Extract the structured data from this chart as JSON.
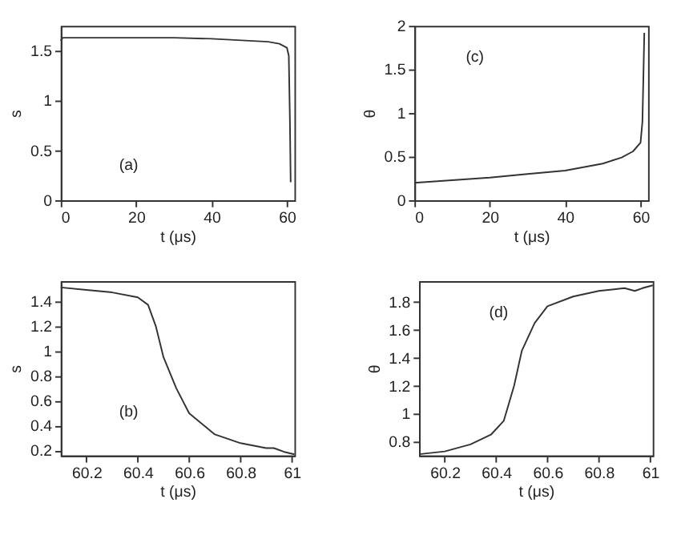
{
  "chart_data": [
    {
      "type": "line",
      "xlabel": "t (μs)",
      "ylabel": "s",
      "annotations": [
        "(a)"
      ],
      "xlim": [
        0,
        62
      ],
      "ylim": [
        0,
        1.75
      ],
      "xticks": [
        0,
        20,
        40,
        60
      ],
      "yticks": [
        0,
        0.5,
        1,
        1.5
      ],
      "grid": false,
      "x": [
        0,
        0.5,
        2,
        10,
        20,
        30,
        40,
        50,
        55,
        58,
        60,
        60.5,
        60.8,
        61
      ],
      "series": [
        {
          "color": "#333333",
          "values": [
            1.6,
            1.63,
            1.63,
            1.63,
            1.63,
            1.63,
            1.62,
            1.6,
            1.59,
            1.57,
            1.53,
            1.45,
            0.8,
            0.18
          ]
        }
      ]
    },
    {
      "type": "line",
      "xlabel": "t (μs)",
      "ylabel": "θ",
      "annotations": [
        "(c)"
      ],
      "xlim": [
        0,
        62
      ],
      "ylim": [
        0,
        2
      ],
      "xticks": [
        0,
        20,
        40,
        60
      ],
      "yticks": [
        0,
        0.5,
        1,
        1.5,
        2
      ],
      "grid": false,
      "x": [
        0,
        10,
        20,
        30,
        40,
        50,
        55,
        58,
        60,
        60.5,
        60.8,
        61
      ],
      "series": [
        {
          "color": "#333333",
          "values": [
            0.2,
            0.23,
            0.26,
            0.3,
            0.34,
            0.42,
            0.49,
            0.56,
            0.66,
            0.9,
            1.5,
            1.92
          ]
        }
      ]
    },
    {
      "type": "line",
      "xlabel": "t (μs)",
      "ylabel": "s",
      "annotations": [
        "(b)"
      ],
      "xlim": [
        60.1,
        61.01
      ],
      "ylim": [
        0.16,
        1.56
      ],
      "xticks": [
        60.2,
        60.4,
        60.6,
        60.8,
        61
      ],
      "yticks": [
        0.2,
        0.4,
        0.6,
        0.8,
        1,
        1.2,
        1.4
      ],
      "grid": false,
      "x": [
        60.1,
        60.2,
        60.3,
        60.4,
        60.44,
        60.47,
        60.5,
        60.55,
        60.6,
        60.7,
        60.8,
        60.9,
        60.93,
        60.97,
        61.01
      ],
      "series": [
        {
          "color": "#333333",
          "values": [
            1.51,
            1.49,
            1.47,
            1.43,
            1.37,
            1.2,
            0.95,
            0.7,
            0.5,
            0.33,
            0.26,
            0.22,
            0.22,
            0.19,
            0.17
          ]
        }
      ]
    },
    {
      "type": "line",
      "xlabel": "t (μs)",
      "ylabel": "θ",
      "annotations": [
        "(d)"
      ],
      "xlim": [
        60.1,
        61.01
      ],
      "ylim": [
        0.7,
        1.95
      ],
      "xticks": [
        60.2,
        60.4,
        60.6,
        60.8,
        61
      ],
      "yticks": [
        0.8,
        1,
        1.2,
        1.4,
        1.6,
        1.8
      ],
      "grid": false,
      "x": [
        60.1,
        60.2,
        60.3,
        60.38,
        60.43,
        60.47,
        60.5,
        60.55,
        60.6,
        60.7,
        60.8,
        60.9,
        60.92,
        60.94,
        60.97,
        61.01
      ],
      "series": [
        {
          "color": "#333333",
          "values": [
            0.71,
            0.73,
            0.78,
            0.85,
            0.95,
            1.2,
            1.45,
            1.65,
            1.77,
            1.84,
            1.88,
            1.9,
            1.89,
            1.88,
            1.9,
            1.92
          ]
        }
      ]
    }
  ]
}
